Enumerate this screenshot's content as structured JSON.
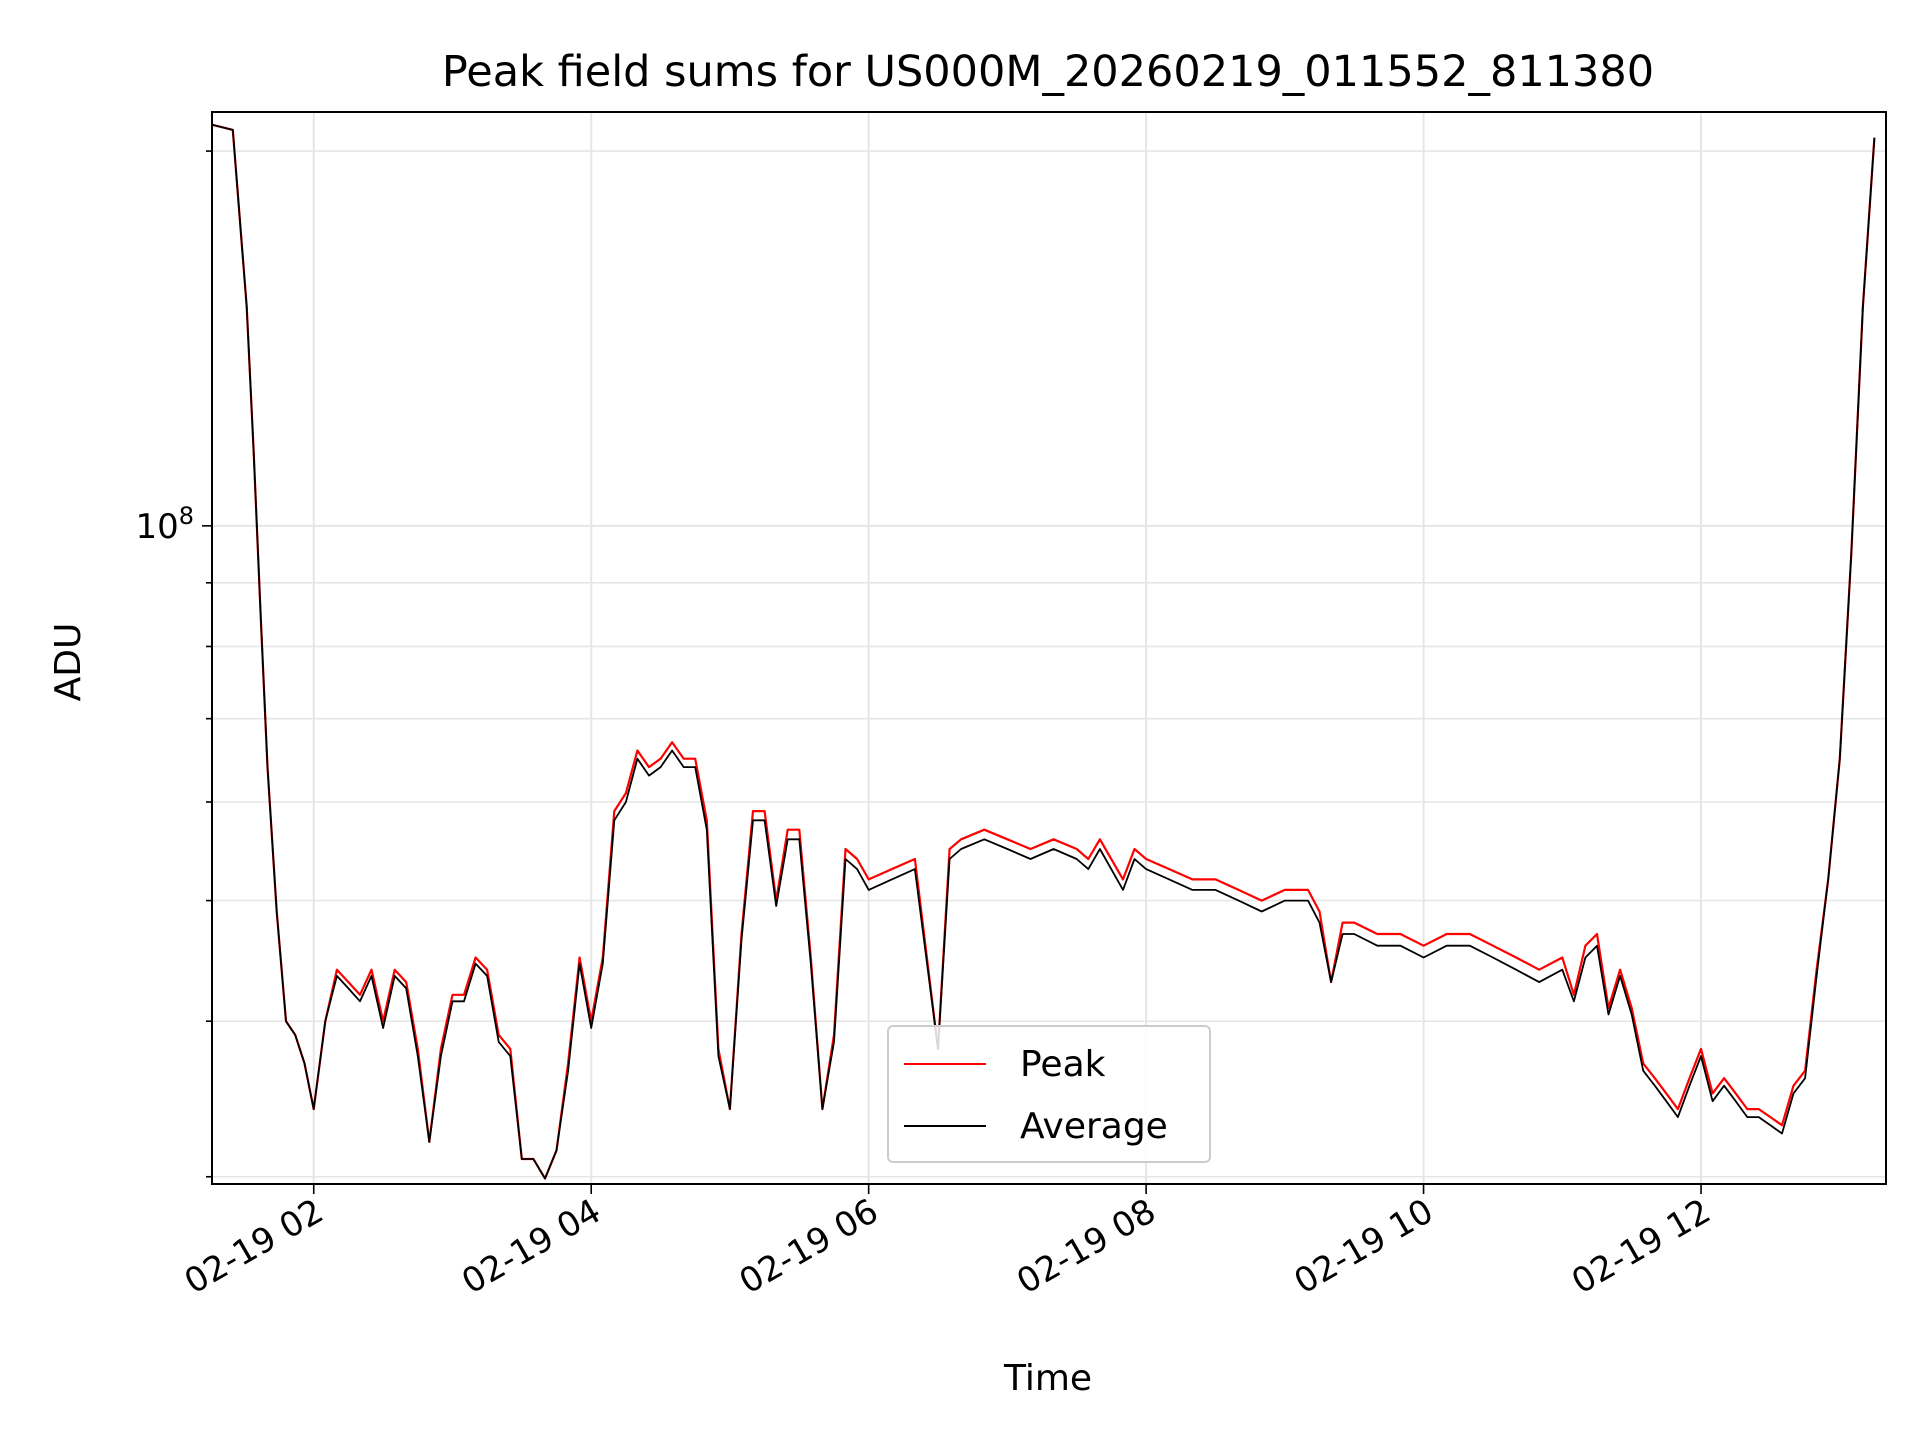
{
  "chart_data": {
    "type": "line",
    "title": "Peak field sums for US000M_20260219_011552_811380",
    "xlabel": "Time",
    "ylabel": "ADU",
    "y_scale": "log",
    "xlim": [
      "2026-02-19 01:16",
      "2026-02-19 13:20"
    ],
    "ylim": [
      29600000,
      215000000
    ],
    "x_ticks": [
      {
        "value": "2026-02-19 02:00",
        "label": "02-19 02"
      },
      {
        "value": "2026-02-19 04:00",
        "label": "02-19 04"
      },
      {
        "value": "2026-02-19 06:00",
        "label": "02-19 06"
      },
      {
        "value": "2026-02-19 08:00",
        "label": "02-19 08"
      },
      {
        "value": "2026-02-19 10:00",
        "label": "02-19 10"
      },
      {
        "value": "2026-02-19 12:00",
        "label": "02-19 12"
      }
    ],
    "y_ticks": [
      {
        "value": 100000000,
        "label_base": "10",
        "label_exp": "8"
      }
    ],
    "grid": true,
    "legend_position": "bottom-center",
    "series": [
      {
        "name": "Peak",
        "color": "#ff0000",
        "x": [
          "2026-02-19 01:16",
          "2026-02-19 01:25",
          "2026-02-19 01:31",
          "2026-02-19 01:34",
          "2026-02-19 01:37",
          "2026-02-19 01:40",
          "2026-02-19 01:44",
          "2026-02-19 01:48",
          "2026-02-19 01:52",
          "2026-02-19 01:56",
          "2026-02-19 02:00",
          "2026-02-19 02:05",
          "2026-02-19 02:10",
          "2026-02-19 02:15",
          "2026-02-19 02:20",
          "2026-02-19 02:25",
          "2026-02-19 02:30",
          "2026-02-19 02:35",
          "2026-02-19 02:40",
          "2026-02-19 02:45",
          "2026-02-19 02:50",
          "2026-02-19 02:55",
          "2026-02-19 03:00",
          "2026-02-19 03:05",
          "2026-02-19 03:10",
          "2026-02-19 03:15",
          "2026-02-19 03:20",
          "2026-02-19 03:25",
          "2026-02-19 03:30",
          "2026-02-19 03:35",
          "2026-02-19 03:40",
          "2026-02-19 03:45",
          "2026-02-19 03:50",
          "2026-02-19 03:55",
          "2026-02-19 04:00",
          "2026-02-19 04:05",
          "2026-02-19 04:10",
          "2026-02-19 04:15",
          "2026-02-19 04:20",
          "2026-02-19 04:25",
          "2026-02-19 04:30",
          "2026-02-19 04:35",
          "2026-02-19 04:40",
          "2026-02-19 04:45",
          "2026-02-19 04:50",
          "2026-02-19 04:55",
          "2026-02-19 05:00",
          "2026-02-19 05:05",
          "2026-02-19 05:10",
          "2026-02-19 05:15",
          "2026-02-19 05:20",
          "2026-02-19 05:25",
          "2026-02-19 05:30",
          "2026-02-19 05:35",
          "2026-02-19 05:40",
          "2026-02-19 05:45",
          "2026-02-19 05:50",
          "2026-02-19 05:55",
          "2026-02-19 06:00",
          "2026-02-19 06:10",
          "2026-02-19 06:20",
          "2026-02-19 06:30",
          "2026-02-19 06:35",
          "2026-02-19 06:40",
          "2026-02-19 06:50",
          "2026-02-19 07:00",
          "2026-02-19 07:10",
          "2026-02-19 07:20",
          "2026-02-19 07:30",
          "2026-02-19 07:35",
          "2026-02-19 07:40",
          "2026-02-19 07:50",
          "2026-02-19 07:55",
          "2026-02-19 08:00",
          "2026-02-19 08:10",
          "2026-02-19 08:20",
          "2026-02-19 08:30",
          "2026-02-19 08:40",
          "2026-02-19 08:50",
          "2026-02-19 09:00",
          "2026-02-19 09:10",
          "2026-02-19 09:15",
          "2026-02-19 09:20",
          "2026-02-19 09:25",
          "2026-02-19 09:30",
          "2026-02-19 09:40",
          "2026-02-19 09:50",
          "2026-02-19 10:00",
          "2026-02-19 10:10",
          "2026-02-19 10:20",
          "2026-02-19 10:30",
          "2026-02-19 10:40",
          "2026-02-19 10:50",
          "2026-02-19 11:00",
          "2026-02-19 11:05",
          "2026-02-19 11:10",
          "2026-02-19 11:15",
          "2026-02-19 11:20",
          "2026-02-19 11:25",
          "2026-02-19 11:30",
          "2026-02-19 11:35",
          "2026-02-19 11:40",
          "2026-02-19 11:45",
          "2026-02-19 11:50",
          "2026-02-19 11:55",
          "2026-02-19 12:00",
          "2026-02-19 12:05",
          "2026-02-19 12:10",
          "2026-02-19 12:15",
          "2026-02-19 12:20",
          "2026-02-19 12:25",
          "2026-02-19 12:30",
          "2026-02-19 12:35",
          "2026-02-19 12:40",
          "2026-02-19 12:45",
          "2026-02-19 12:50",
          "2026-02-19 12:55",
          "2026-02-19 13:00",
          "2026-02-19 13:05",
          "2026-02-19 13:10",
          "2026-02-19 13:15"
        ],
        "y": [
          210000000,
          208000000,
          150000000,
          115000000,
          85000000,
          64000000,
          49000000,
          40000000,
          39000000,
          37000000,
          34000000,
          40000000,
          44000000,
          43000000,
          42000000,
          44000000,
          40000000,
          44000000,
          43000000,
          38000000,
          32000000,
          38000000,
          42000000,
          42000000,
          45000000,
          44000000,
          39000000,
          38000000,
          31000000,
          31000000,
          29900000,
          31500000,
          37000000,
          45000000,
          40000000,
          45000000,
          59000000,
          61000000,
          66000000,
          64000000,
          65000000,
          67000000,
          65000000,
          65000000,
          58000000,
          38000000,
          34000000,
          47000000,
          59000000,
          59000000,
          50000000,
          57000000,
          57000000,
          45000000,
          34000000,
          39000000,
          55000000,
          54000000,
          52000000,
          53000000,
          54000000,
          38000000,
          55000000,
          56000000,
          57000000,
          56000000,
          55000000,
          56000000,
          55000000,
          54000000,
          56000000,
          52000000,
          55000000,
          54000000,
          53000000,
          52000000,
          52000000,
          51000000,
          50000000,
          51000000,
          51000000,
          49000000,
          43000000,
          48000000,
          48000000,
          47000000,
          47000000,
          46000000,
          47000000,
          47000000,
          46000000,
          45000000,
          44000000,
          45000000,
          42000000,
          46000000,
          47000000,
          41000000,
          44000000,
          41000000,
          37000000,
          36000000,
          35000000,
          34000000,
          36000000,
          38000000,
          35000000,
          36000000,
          35000000,
          34000000,
          34000000,
          33500000,
          33000000,
          35500000,
          36500000,
          44000000,
          52000000,
          65000000,
          95000000,
          150000000,
          205000000
        ]
      },
      {
        "name": "Average",
        "color": "#000000",
        "x": [
          "2026-02-19 01:16",
          "2026-02-19 01:25",
          "2026-02-19 01:31",
          "2026-02-19 01:34",
          "2026-02-19 01:37",
          "2026-02-19 01:40",
          "2026-02-19 01:44",
          "2026-02-19 01:48",
          "2026-02-19 01:52",
          "2026-02-19 01:56",
          "2026-02-19 02:00",
          "2026-02-19 02:05",
          "2026-02-19 02:10",
          "2026-02-19 02:15",
          "2026-02-19 02:20",
          "2026-02-19 02:25",
          "2026-02-19 02:30",
          "2026-02-19 02:35",
          "2026-02-19 02:40",
          "2026-02-19 02:45",
          "2026-02-19 02:50",
          "2026-02-19 02:55",
          "2026-02-19 03:00",
          "2026-02-19 03:05",
          "2026-02-19 03:10",
          "2026-02-19 03:15",
          "2026-02-19 03:20",
          "2026-02-19 03:25",
          "2026-02-19 03:30",
          "2026-02-19 03:35",
          "2026-02-19 03:40",
          "2026-02-19 03:45",
          "2026-02-19 03:50",
          "2026-02-19 03:55",
          "2026-02-19 04:00",
          "2026-02-19 04:05",
          "2026-02-19 04:10",
          "2026-02-19 04:15",
          "2026-02-19 04:20",
          "2026-02-19 04:25",
          "2026-02-19 04:30",
          "2026-02-19 04:35",
          "2026-02-19 04:40",
          "2026-02-19 04:45",
          "2026-02-19 04:50",
          "2026-02-19 04:55",
          "2026-02-19 05:00",
          "2026-02-19 05:05",
          "2026-02-19 05:10",
          "2026-02-19 05:15",
          "2026-02-19 05:20",
          "2026-02-19 05:25",
          "2026-02-19 05:30",
          "2026-02-19 05:35",
          "2026-02-19 05:40",
          "2026-02-19 05:45",
          "2026-02-19 05:50",
          "2026-02-19 05:55",
          "2026-02-19 06:00",
          "2026-02-19 06:10",
          "2026-02-19 06:20",
          "2026-02-19 06:30",
          "2026-02-19 06:35",
          "2026-02-19 06:40",
          "2026-02-19 06:50",
          "2026-02-19 07:00",
          "2026-02-19 07:10",
          "2026-02-19 07:20",
          "2026-02-19 07:30",
          "2026-02-19 07:35",
          "2026-02-19 07:40",
          "2026-02-19 07:50",
          "2026-02-19 07:55",
          "2026-02-19 08:00",
          "2026-02-19 08:10",
          "2026-02-19 08:20",
          "2026-02-19 08:30",
          "2026-02-19 08:40",
          "2026-02-19 08:50",
          "2026-02-19 09:00",
          "2026-02-19 09:10",
          "2026-02-19 09:15",
          "2026-02-19 09:20",
          "2026-02-19 09:25",
          "2026-02-19 09:30",
          "2026-02-19 09:40",
          "2026-02-19 09:50",
          "2026-02-19 10:00",
          "2026-02-19 10:10",
          "2026-02-19 10:20",
          "2026-02-19 10:30",
          "2026-02-19 10:40",
          "2026-02-19 10:50",
          "2026-02-19 11:00",
          "2026-02-19 11:05",
          "2026-02-19 11:10",
          "2026-02-19 11:15",
          "2026-02-19 11:20",
          "2026-02-19 11:25",
          "2026-02-19 11:30",
          "2026-02-19 11:35",
          "2026-02-19 11:40",
          "2026-02-19 11:45",
          "2026-02-19 11:50",
          "2026-02-19 11:55",
          "2026-02-19 12:00",
          "2026-02-19 12:05",
          "2026-02-19 12:10",
          "2026-02-19 12:15",
          "2026-02-19 12:20",
          "2026-02-19 12:25",
          "2026-02-19 12:30",
          "2026-02-19 12:35",
          "2026-02-19 12:40",
          "2026-02-19 12:45",
          "2026-02-19 12:50",
          "2026-02-19 12:55",
          "2026-02-19 13:00",
          "2026-02-19 13:05",
          "2026-02-19 13:10",
          "2026-02-19 13:15"
        ],
        "y": [
          210000000,
          208000000,
          150000000,
          115000000,
          85000000,
          64000000,
          49000000,
          40000000,
          39000000,
          37000000,
          34000000,
          40000000,
          43500000,
          42500000,
          41500000,
          43500000,
          39500000,
          43500000,
          42500000,
          37500000,
          32000000,
          37500000,
          41500000,
          41500000,
          44500000,
          43500000,
          38500000,
          37500000,
          31000000,
          31000000,
          29900000,
          31500000,
          36500000,
          44500000,
          39500000,
          44500000,
          58000000,
          60000000,
          65000000,
          63000000,
          64000000,
          66000000,
          64000000,
          64000000,
          57000000,
          37500000,
          34000000,
          46500000,
          58000000,
          58000000,
          49500000,
          56000000,
          56000000,
          44500000,
          34000000,
          38500000,
          54000000,
          53000000,
          51000000,
          52000000,
          53000000,
          38000000,
          54000000,
          55000000,
          56000000,
          55000000,
          54000000,
          55000000,
          54000000,
          53000000,
          55000000,
          51000000,
          54000000,
          53000000,
          52000000,
          51000000,
          51000000,
          50000000,
          49000000,
          50000000,
          50000000,
          48000000,
          43000000,
          47000000,
          47000000,
          46000000,
          46000000,
          45000000,
          46000000,
          46000000,
          45000000,
          44000000,
          43000000,
          44000000,
          41500000,
          45000000,
          46000000,
          40500000,
          43500000,
          40500000,
          36500000,
          35500000,
          34500000,
          33500000,
          35500000,
          37500000,
          34500000,
          35500000,
          34500000,
          33500000,
          33500000,
          33000000,
          32500000,
          35000000,
          36000000,
          43500000,
          52000000,
          65000000,
          95000000,
          150000000,
          205000000
        ]
      }
    ]
  }
}
